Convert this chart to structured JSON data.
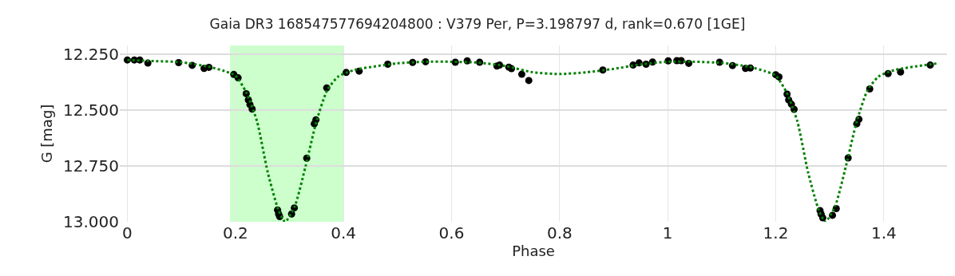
{
  "chart_data": {
    "type": "scatter",
    "title": "Gaia DR3 168547577694204800 : V379 Per, P=3.198797 d, rank=0.670 [1GE]",
    "xlabel": "Phase",
    "ylabel": "G [mag]",
    "xlim": [
      -0.014,
      1.517
    ],
    "xticks": [
      0,
      0.2,
      0.4,
      0.6,
      0.8,
      1,
      1.2,
      1.4
    ],
    "ylim": [
      13.0,
      12.21
    ],
    "yticks": [
      {
        "value": 12.25,
        "label": "12.250"
      },
      {
        "value": 12.5,
        "label": "12.500"
      },
      {
        "value": 12.75,
        "label": "12.750"
      },
      {
        "value": 13.0,
        "label": "13.000"
      }
    ],
    "grid": true,
    "bands": [
      {
        "axis": "x",
        "from": 0.19,
        "to": 0.4,
        "color": "#ccffcc"
      }
    ],
    "series": [
      {
        "type": "line",
        "color": "#008000",
        "line_style": "dotted",
        "marker": "none",
        "x": [
          0,
          0.05,
          0.1,
          0.15,
          0.18,
          0.2,
          0.22,
          0.24,
          0.26,
          0.28,
          0.292,
          0.31,
          0.33,
          0.35,
          0.37,
          0.39,
          0.42,
          0.5,
          0.55,
          0.6,
          0.65,
          0.7,
          0.75,
          0.8,
          0.85,
          0.9,
          0.95,
          1.0,
          1.05,
          1.1,
          1.15,
          1.18,
          1.2,
          1.22,
          1.24,
          1.26,
          1.28,
          1.292,
          1.31,
          1.33,
          1.35,
          1.37,
          1.39,
          1.42,
          1.5
        ],
        "values": [
          12.275,
          12.28,
          12.285,
          12.305,
          12.325,
          12.345,
          12.42,
          12.55,
          12.78,
          12.95,
          13.0,
          12.93,
          12.75,
          12.55,
          12.41,
          12.35,
          12.32,
          12.29,
          12.283,
          12.283,
          12.287,
          12.302,
          12.33,
          12.338,
          12.33,
          12.315,
          12.295,
          12.283,
          12.283,
          12.288,
          12.305,
          12.325,
          12.345,
          12.42,
          12.55,
          12.78,
          12.95,
          13.0,
          12.93,
          12.75,
          12.55,
          12.41,
          12.35,
          12.32,
          12.29
        ]
      },
      {
        "color": "#000000",
        "marker": "circle",
        "x": [
          0.0,
          0.013,
          0.023,
          0.038,
          0.095,
          0.12,
          0.142,
          0.151,
          0.197,
          0.205,
          0.22,
          0.224,
          0.227,
          0.231,
          0.278,
          0.28,
          0.282,
          0.304,
          0.309,
          0.332,
          0.346,
          0.349,
          0.369,
          0.405,
          0.429,
          0.482,
          0.528,
          0.552,
          0.607,
          0.629,
          0.652,
          0.684,
          0.689,
          0.706,
          0.711,
          0.73,
          0.743,
          0.88,
          0.936,
          0.947,
          0.96,
          0.972,
          1.001,
          1.017,
          1.025,
          1.039,
          1.096,
          1.12,
          1.144,
          1.153,
          1.2,
          1.206,
          1.221,
          1.224,
          1.229,
          1.234,
          1.282,
          1.284,
          1.287,
          1.305,
          1.312,
          1.334,
          1.35,
          1.354,
          1.374,
          1.408,
          1.431,
          1.486
        ],
        "values": [
          12.275,
          12.275,
          12.275,
          12.289,
          12.287,
          12.299,
          12.313,
          12.308,
          12.34,
          12.355,
          12.426,
          12.454,
          12.475,
          12.495,
          12.947,
          12.965,
          12.977,
          12.965,
          12.938,
          12.715,
          12.561,
          12.543,
          12.4,
          12.331,
          12.325,
          12.294,
          12.286,
          12.283,
          12.285,
          12.279,
          12.285,
          12.302,
          12.298,
          12.307,
          12.314,
          12.339,
          12.367,
          12.32,
          12.298,
          12.288,
          12.294,
          12.284,
          12.279,
          12.278,
          12.278,
          12.29,
          12.285,
          12.3,
          12.313,
          12.311,
          12.341,
          12.351,
          12.428,
          12.454,
          12.473,
          12.496,
          12.95,
          12.966,
          12.982,
          12.971,
          12.941,
          12.714,
          12.561,
          12.541,
          12.405,
          12.336,
          12.329,
          12.298
        ]
      }
    ]
  }
}
